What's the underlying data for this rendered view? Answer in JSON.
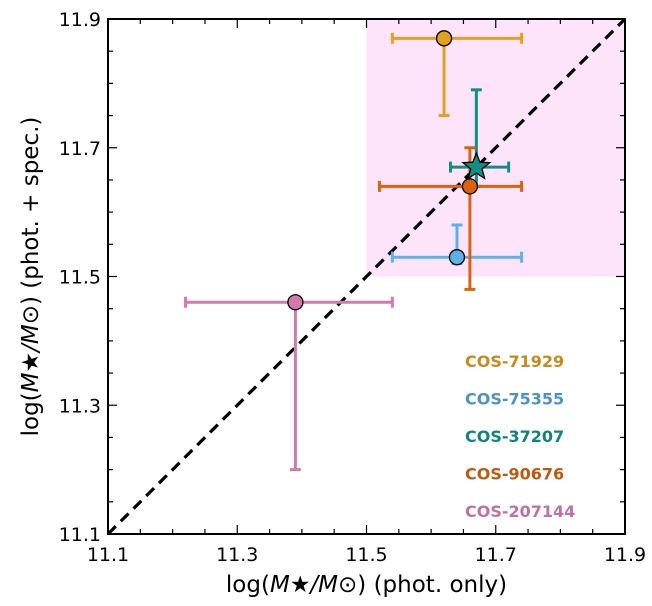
{
  "chart_data": {
    "type": "scatter",
    "xlabel_prefix": "log(",
    "xlabel_math": "M★/M⊙",
    "xlabel_suffix": ") (phot. only)",
    "ylabel_prefix": "log(",
    "ylabel_math": "M★/M⊙",
    "ylabel_suffix": ") (phot. + spec.)",
    "xlim": [
      11.1,
      11.9
    ],
    "ylim": [
      11.1,
      11.9
    ],
    "x_ticks": [
      "11.1",
      "11.3",
      "11.5",
      "11.7",
      "11.9"
    ],
    "y_ticks": [
      "11.1",
      "11.3",
      "11.5",
      "11.7",
      "11.9"
    ],
    "shaded_region": {
      "x": [
        11.5,
        11.9
      ],
      "y": [
        11.5,
        11.9
      ],
      "color": "#fde4fb"
    },
    "one_to_one_line": true,
    "series": [
      {
        "name": "COS-71929",
        "x": 11.62,
        "y": 11.87,
        "xerr": [
          11.54,
          11.74
        ],
        "yerr": [
          11.75,
          11.87
        ],
        "color": "#e3a11d",
        "marker": "circle",
        "label_color": "#c8891d"
      },
      {
        "name": "COS-75355",
        "x": 11.64,
        "y": 11.53,
        "xerr": [
          11.54,
          11.74
        ],
        "yerr": [
          11.52,
          11.58
        ],
        "color": "#5eb1e6",
        "marker": "circle",
        "label_color": "#4b93c2"
      },
      {
        "name": "COS-37207",
        "x": 11.67,
        "y": 11.67,
        "xerr": [
          11.63,
          11.72
        ],
        "yerr": [
          11.64,
          11.79
        ],
        "color": "#0f8f86",
        "marker": "star",
        "label_color": "#0c857c"
      },
      {
        "name": "COS-90676",
        "x": 11.66,
        "y": 11.64,
        "xerr": [
          11.52,
          11.74
        ],
        "yerr": [
          11.48,
          11.7
        ],
        "color": "#db620f",
        "marker": "circle",
        "label_color": "#c0580f"
      },
      {
        "name": "COS-207144",
        "x": 11.39,
        "y": 11.46,
        "xerr": [
          11.22,
          11.54
        ],
        "yerr": [
          11.2,
          11.46
        ],
        "color": "#d27aaa",
        "marker": "circle",
        "label_color": "#c2709f"
      }
    ]
  }
}
